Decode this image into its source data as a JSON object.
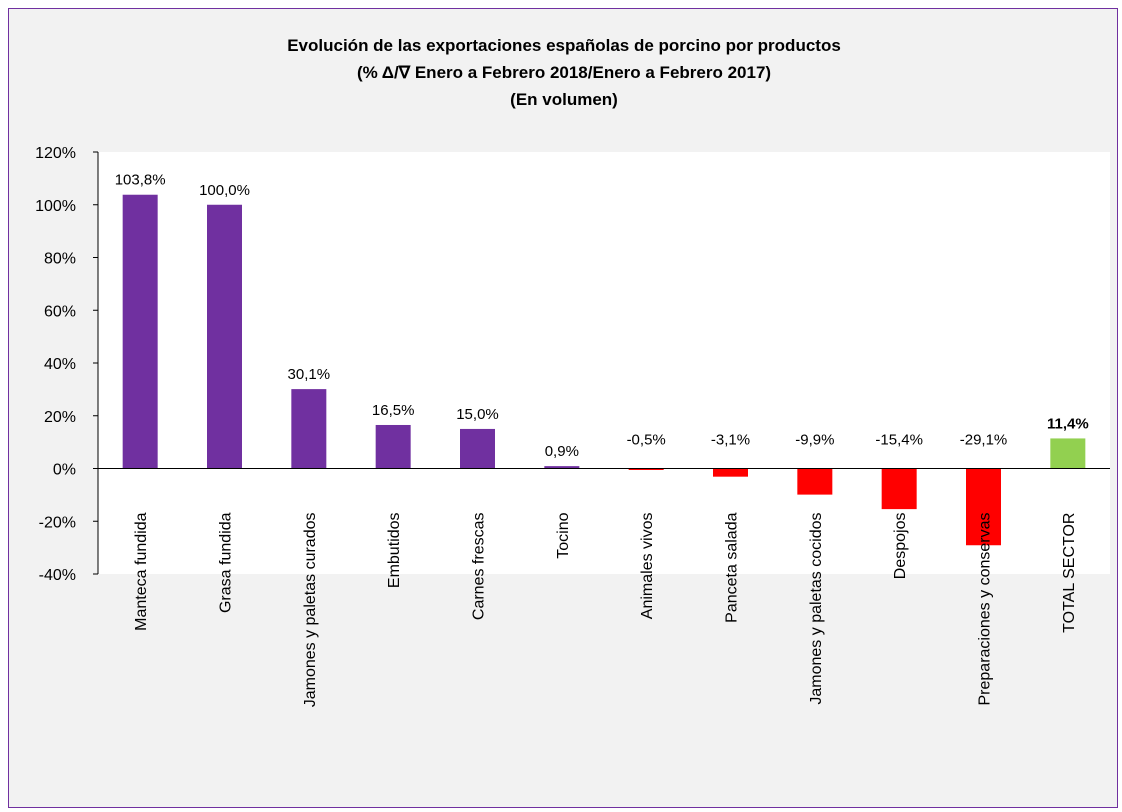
{
  "chart_data": {
    "type": "bar",
    "title_lines": [
      "Evolución de las exportaciones españolas de porcino por productos",
      "(% Δ/∇ Enero a Febrero 2018/Enero a Febrero 2017)",
      "(En volumen)"
    ],
    "categories": [
      "Manteca fundida",
      "Grasa fundida",
      "Jamones y paletas curados",
      "Embutidos",
      "Carnes frescas",
      "Tocino",
      "Animales vivos",
      "Panceta salada",
      "Jamones y paletas cocidos",
      "Despojos",
      "Preparaciones y conservas",
      "TOTAL SECTOR"
    ],
    "values": [
      103.8,
      100.0,
      30.1,
      16.5,
      15.0,
      0.9,
      -0.5,
      -3.1,
      -9.9,
      -15.4,
      -29.1,
      11.4
    ],
    "data_labels": [
      "103,8%",
      "100,0%",
      "30,1%",
      "16,5%",
      "15,0%",
      "0,9%",
      "-0,5%",
      "-3,1%",
      "-9,9%",
      "-15,4%",
      "-29,1%",
      "11,4%"
    ],
    "yticks": [
      "120%",
      "100%",
      "80%",
      "60%",
      "40%",
      "20%",
      "0%",
      "-20%",
      "-40%"
    ],
    "ylim": [
      -40,
      120
    ],
    "grid": false,
    "legend": "none",
    "colors": {
      "positive": "#7030a0",
      "negative": "#ff0000",
      "total": "#92d050"
    }
  }
}
